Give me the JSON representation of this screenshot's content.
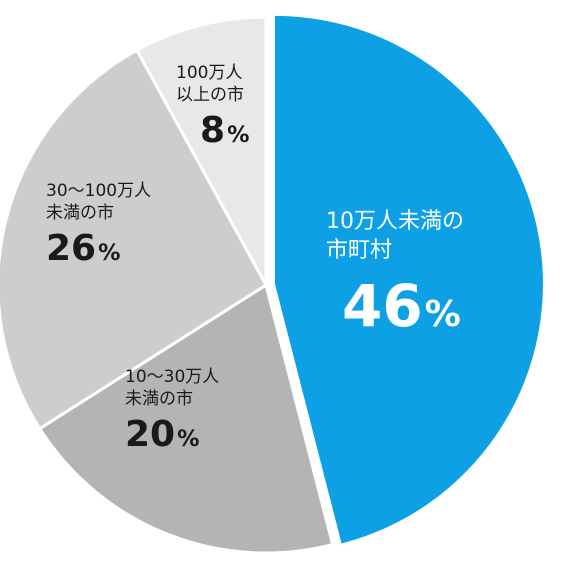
{
  "chart_data": {
    "type": "pie",
    "slices": [
      {
        "label_line1": "10万人未満の",
        "label_line2": "市町村",
        "value": "46",
        "color": "#0ea0e4",
        "exploded": true
      },
      {
        "label_line1": "10～30万人",
        "label_line2": "未満の市",
        "value": "20",
        "color": "#b4b4b4",
        "exploded": false
      },
      {
        "label_line1": "30～100万人",
        "label_line2": "未満の市",
        "value": "26",
        "color": "#cdcdcd",
        "exploded": false
      },
      {
        "label_line1": "100万人",
        "label_line2": "以上の市",
        "value": "8",
        "color": "#e8e8e8",
        "exploded": false
      }
    ],
    "percent_symbol": "%"
  }
}
